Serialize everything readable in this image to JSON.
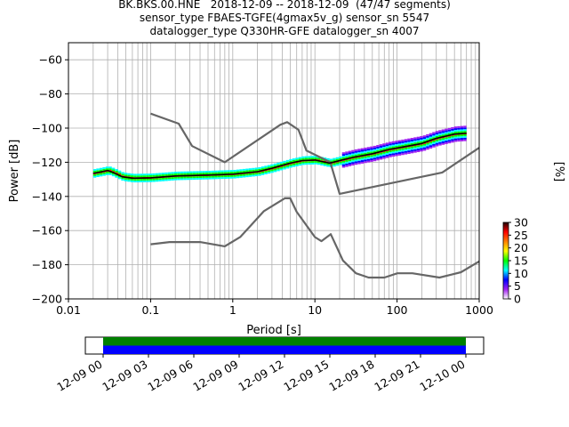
{
  "title_lines": [
    "BK.BKS.00.HNE   2018-12-09 -- 2018-12-09  (47/47 segments)",
    "sensor_type FBAES-TGFE(4gmax5v_g) sensor_sn 5547",
    "datalogger_type Q330HR-GFE datalogger_sn 4007"
  ],
  "chart_data": [
    {
      "type": "heatmap",
      "xlabel": "Period [s]",
      "ylabel": "Power [dB]",
      "xscale": "log",
      "xlim": [
        0.01,
        1000
      ],
      "ylim": [
        -200,
        -50
      ],
      "xticks": [
        0.01,
        0.1,
        1,
        10,
        100,
        1000
      ],
      "xtick_labels": [
        "0.01",
        "0.1",
        "1",
        "10",
        "100",
        "1000"
      ],
      "yticks": [
        -200,
        -180,
        -160,
        -140,
        -120,
        -100,
        -80,
        -60
      ],
      "ytick_labels": [
        "−200",
        "−180",
        "−160",
        "−140",
        "−120",
        "−100",
        "−80",
        "−60"
      ],
      "grid": true,
      "colorbar": {
        "label": "[%]",
        "min": 0,
        "max": 30,
        "ticks": [
          0,
          5,
          10,
          15,
          20,
          25,
          30
        ],
        "tick_labels": [
          "0",
          "5",
          "10",
          "15",
          "20",
          "25",
          "30"
        ],
        "colors": [
          "#ffffff",
          "#a020f0",
          "#0000ff",
          "#00ffff",
          "#00ff00",
          "#ffff00",
          "#ff8000",
          "#ff0000",
          "#200000"
        ]
      },
      "series": [
        {
          "style": "noise-model-high",
          "color": "#666666",
          "points": [
            [
              0.1,
              -91.5
            ],
            [
              0.22,
              -97.4
            ],
            [
              0.32,
              -110.5
            ],
            [
              0.8,
              -120.0
            ],
            [
              3.8,
              -98.0
            ],
            [
              4.6,
              -96.5
            ],
            [
              6.3,
              -101.0
            ],
            [
              7.9,
              -113.2
            ],
            [
              15.4,
              -120.0
            ],
            [
              20,
              -138.5
            ],
            [
              354.8,
              -126.0
            ],
            [
              1000,
              -111.5
            ]
          ]
        },
        {
          "style": "noise-model-low",
          "color": "#666666",
          "points": [
            [
              0.1,
              -168.0
            ],
            [
              0.17,
              -166.7
            ],
            [
              0.4,
              -166.7
            ],
            [
              0.8,
              -169.2
            ],
            [
              1.24,
              -163.7
            ],
            [
              2.4,
              -148.6
            ],
            [
              4.3,
              -141.1
            ],
            [
              5.0,
              -141.1
            ],
            [
              6.0,
              -149.0
            ],
            [
              10.0,
              -163.8
            ],
            [
              12.0,
              -166.2
            ],
            [
              15.6,
              -162.1
            ],
            [
              21.9,
              -177.5
            ],
            [
              31.6,
              -185.0
            ],
            [
              45.0,
              -187.5
            ],
            [
              70.0,
              -187.5
            ],
            [
              101.0,
              -185.0
            ],
            [
              154.0,
              -185.0
            ],
            [
              328.0,
              -187.5
            ],
            [
              600.0,
              -184.4
            ],
            [
              1000.0,
              -178.0
            ]
          ]
        },
        {
          "style": "ppsd-mode",
          "color": "#000000",
          "points": [
            [
              0.02,
              -126.5
            ],
            [
              0.025,
              -125.6
            ],
            [
              0.03,
              -124.8
            ],
            [
              0.035,
              -126.0
            ],
            [
              0.045,
              -128.5
            ],
            [
              0.06,
              -129.3
            ],
            [
              0.1,
              -129.1
            ],
            [
              0.2,
              -128.0
            ],
            [
              0.5,
              -127.5
            ],
            [
              1.0,
              -127.0
            ],
            [
              2.0,
              -125.5
            ],
            [
              3.0,
              -123.5
            ],
            [
              5.0,
              -120.5
            ],
            [
              7.0,
              -119.0
            ],
            [
              10.0,
              -118.7
            ],
            [
              15.0,
              -120.5
            ],
            [
              20.0,
              -119.0
            ],
            [
              30.0,
              -117.0
            ],
            [
              50.0,
              -115.0
            ],
            [
              80.0,
              -112.5
            ],
            [
              120.0,
              -111.0
            ],
            [
              200.0,
              -109.0
            ],
            [
              300.0,
              -106.0
            ],
            [
              500.0,
              -103.5
            ],
            [
              700.0,
              -103.0
            ]
          ]
        }
      ]
    },
    {
      "type": "timeline",
      "xticks": [
        "12-09 00",
        "12-09 03",
        "12-09 06",
        "12-09 09",
        "12-09 12",
        "12-09 15",
        "12-09 18",
        "12-09 21",
        "12-10 00"
      ],
      "bars": [
        {
          "color": "#008000",
          "start": "12-09 00",
          "end": "12-10 00"
        },
        {
          "color": "#0000ff",
          "start": "12-09 00",
          "end": "12-10 00"
        }
      ]
    }
  ]
}
